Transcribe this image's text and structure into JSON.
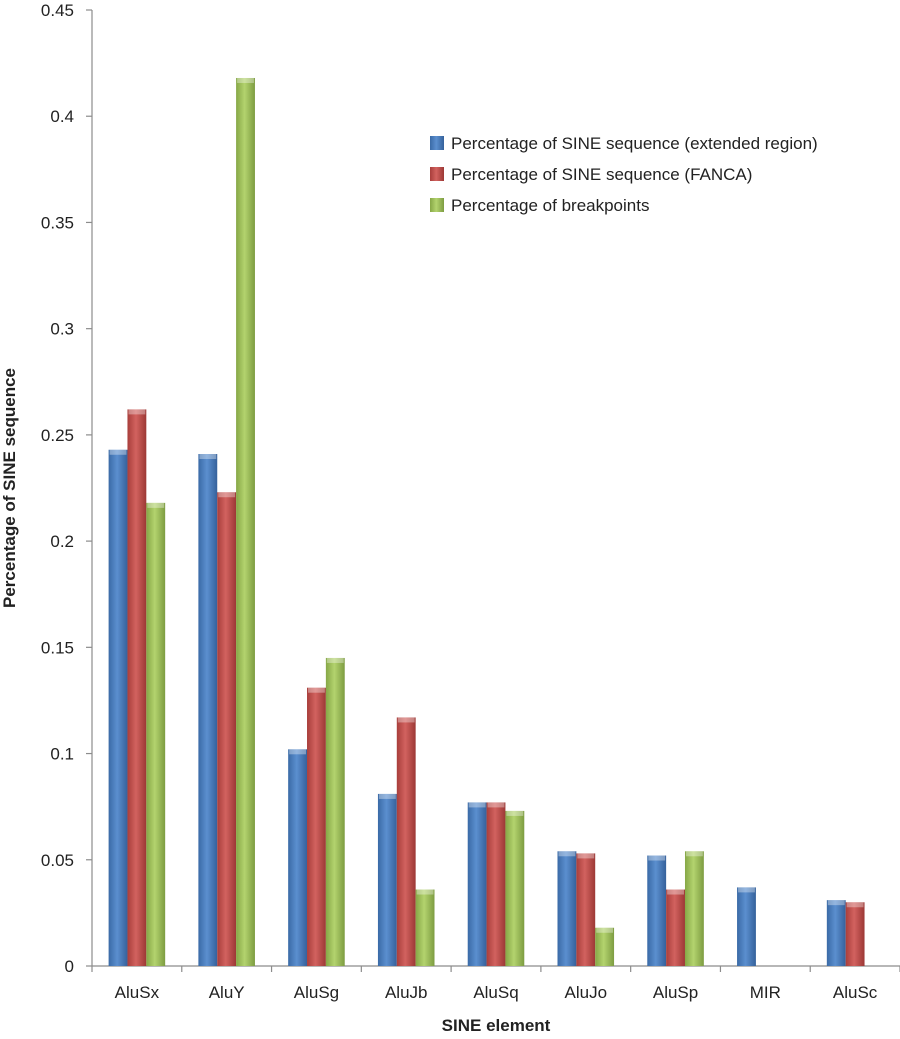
{
  "chart_data": {
    "type": "bar",
    "title": "",
    "xlabel": "SINE element",
    "ylabel": "Percentage of SINE sequence",
    "ylim": [
      0,
      0.45
    ],
    "yticks": [
      0,
      0.05,
      0.1,
      0.15,
      0.2,
      0.25,
      0.3,
      0.35,
      0.4,
      0.45
    ],
    "ytick_labels": [
      "0",
      "0.05",
      "0.1",
      "0.15",
      "0.2",
      "0.25",
      "0.3",
      "0.35",
      "0.4",
      "0.45"
    ],
    "grid": false,
    "legend_position": "top-right",
    "categories": [
      "AluSx",
      "AluY",
      "AluSg",
      "AluJb",
      "AluSq",
      "AluJo",
      "AluSp",
      "MIR",
      "AluSc"
    ],
    "series": [
      {
        "name": "Percentage of SINE sequence (extended region)",
        "color": "#4f81bd",
        "values": [
          0.243,
          0.241,
          0.102,
          0.081,
          0.077,
          0.054,
          0.052,
          0.037,
          0.031
        ]
      },
      {
        "name": "Percentage of SINE sequence (FANCA)",
        "color": "#c0504d",
        "values": [
          0.262,
          0.223,
          0.131,
          0.117,
          0.077,
          0.053,
          0.036,
          0,
          0.03
        ]
      },
      {
        "name": "Percentage of breakpoints",
        "color": "#9bbb59",
        "values": [
          0.218,
          0.418,
          0.145,
          0.036,
          0.073,
          0.018,
          0.054,
          0,
          0
        ]
      }
    ]
  }
}
